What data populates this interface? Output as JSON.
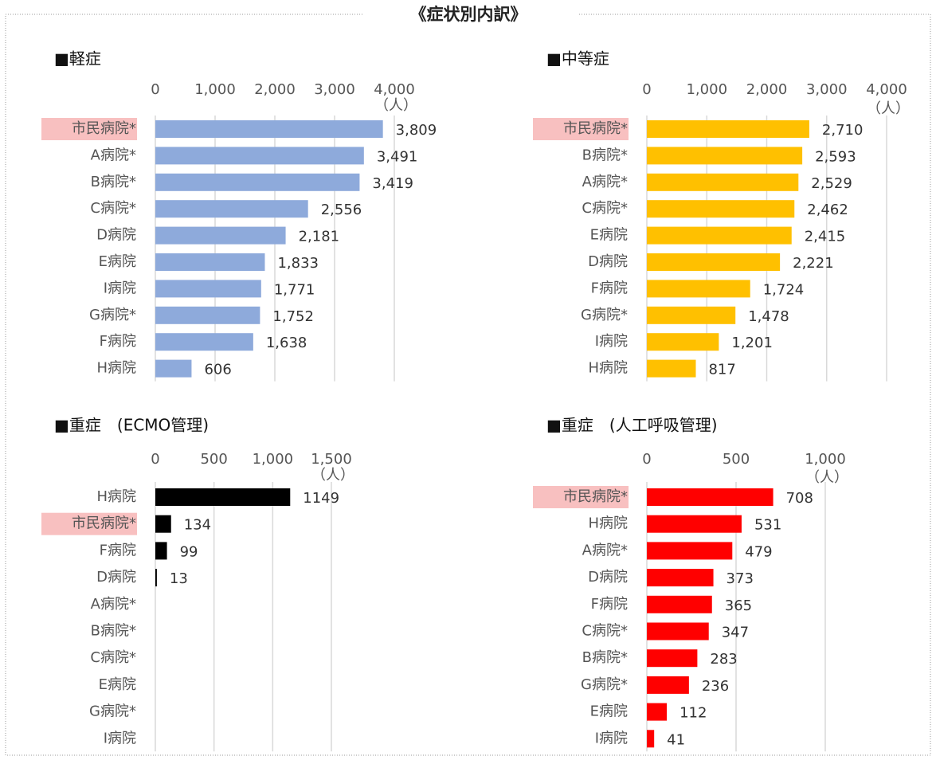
{
  "title": "《症状別内訳》",
  "chart_data": [
    {
      "type": "bar",
      "title": "■軽症",
      "unit": "（人）",
      "color": "#8eaadb",
      "highlight": [
        0
      ],
      "highlight_color": "#f8c0c0",
      "categories": [
        "市民病院*",
        "A病院*",
        "B病院*",
        "C病院*",
        "D病院",
        "E病院",
        "I病院",
        "G病院*",
        "F病院",
        "H病院"
      ],
      "values": [
        3809,
        3491,
        3419,
        2556,
        2181,
        1833,
        1771,
        1752,
        1638,
        606
      ],
      "value_labels": [
        "3,809",
        "3,491",
        "3,419",
        "2,556",
        "2,181",
        "1,833",
        "1,771",
        "1,752",
        "1,638",
        "606"
      ],
      "xlim": [
        0,
        4000
      ],
      "xticks": [
        0,
        {
          "value": 1000,
          "label": "1,000"
        },
        {
          "value": 2000,
          "label": "2,000"
        },
        {
          "value": 3000,
          "label": "3,000"
        },
        {
          "value": 4000,
          "label": "4,000"
        }
      ],
      "grid": true
    },
    {
      "type": "bar",
      "title": "■中等症",
      "unit": "（人）",
      "color": "#ffc000",
      "highlight": [
        0
      ],
      "highlight_color": "#f8c0c0",
      "categories": [
        "市民病院*",
        "B病院*",
        "A病院*",
        "C病院*",
        "E病院",
        "D病院",
        "F病院",
        "G病院*",
        "I病院",
        "H病院"
      ],
      "values": [
        2710,
        2593,
        2529,
        2462,
        2415,
        2221,
        1724,
        1478,
        1201,
        817
      ],
      "value_labels": [
        "2,710",
        "2,593",
        "2,529",
        "2,462",
        "2,415",
        "2,221",
        "1,724",
        "1,478",
        "1,201",
        "817"
      ],
      "xlim": [
        0,
        4000
      ],
      "xticks": [
        0,
        {
          "value": 1000,
          "label": "1,000"
        },
        {
          "value": 2000,
          "label": "2,000"
        },
        {
          "value": 3000,
          "label": "3,000"
        },
        {
          "value": 4000,
          "label": "4,000"
        }
      ],
      "grid": true
    },
    {
      "type": "bar",
      "title": "■重症　(ECMO管理)",
      "unit": "（人）",
      "color": "#000000",
      "highlight": [
        1
      ],
      "highlight_color": "#f8c0c0",
      "categories": [
        "H病院",
        "市民病院*",
        "F病院",
        "D病院",
        "A病院*",
        "B病院*",
        "C病院*",
        "E病院",
        "G病院*",
        "I病院"
      ],
      "values": [
        1149,
        134,
        99,
        13,
        null,
        null,
        null,
        null,
        null,
        null
      ],
      "xlim": [
        0,
        1500
      ],
      "xticks": [
        0,
        500,
        {
          "value": 1000,
          "label": "1,000"
        },
        {
          "value": 1500,
          "label": "1,500"
        }
      ],
      "grid": true
    },
    {
      "type": "bar",
      "title": "■重症　(人工呼吸管理)",
      "unit": "（人）",
      "color": "#ff0000",
      "highlight": [
        0
      ],
      "highlight_color": "#f8c0c0",
      "categories": [
        "市民病院*",
        "H病院",
        "A病院*",
        "D病院",
        "F病院",
        "C病院*",
        "B病院*",
        "G病院*",
        "E病院",
        "I病院"
      ],
      "values": [
        708,
        531,
        479,
        373,
        365,
        347,
        283,
        236,
        112,
        41
      ],
      "xlim": [
        0,
        1000
      ],
      "xticks": [
        0,
        500,
        {
          "value": 1000,
          "label": "1,000"
        }
      ],
      "grid": true
    }
  ]
}
